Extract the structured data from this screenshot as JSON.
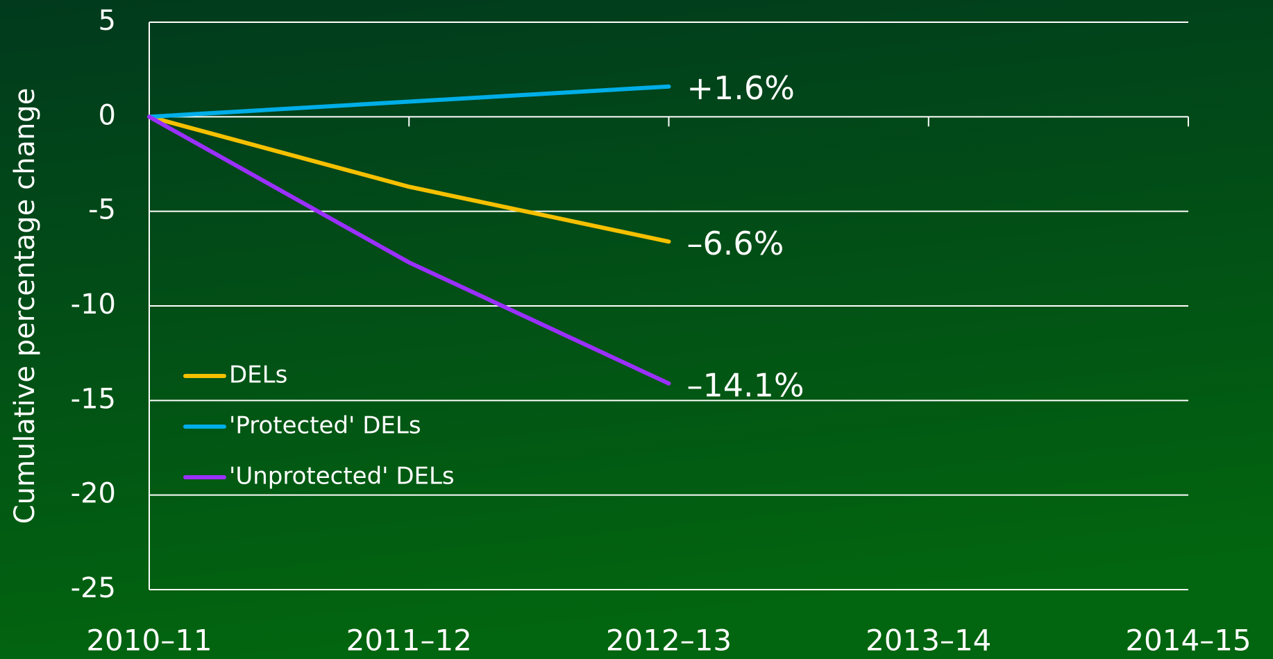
{
  "chart_data": {
    "type": "line",
    "y_label": "Cumulative percentage change",
    "categories": [
      "2010–11",
      "2011–12",
      "2012–13",
      "2013–14",
      "2014–15"
    ],
    "series": [
      {
        "name": "DELs",
        "color": "#f5c000",
        "values": [
          0,
          -3.7,
          -6.6,
          null,
          null
        ],
        "value_labels": [
          null,
          null,
          "–6.6%",
          null,
          null
        ]
      },
      {
        "name": "'Protected' DELs",
        "color": "#00aee8",
        "values": [
          0,
          0.8,
          1.6,
          null,
          null
        ],
        "value_labels": [
          null,
          null,
          "+1.6%",
          null,
          null
        ]
      },
      {
        "name": "'Unprotected' DELs",
        "color": "#9b30ff",
        "values": [
          0,
          -7.7,
          -14.1,
          null,
          null
        ],
        "value_labels": [
          null,
          null,
          "–14.1%",
          null,
          null
        ]
      }
    ],
    "ylim": [
      -25,
      5
    ],
    "yticks": [
      5,
      0,
      -5,
      -10,
      -15,
      -20,
      -25
    ],
    "grid": true,
    "legend": "lower left"
  }
}
